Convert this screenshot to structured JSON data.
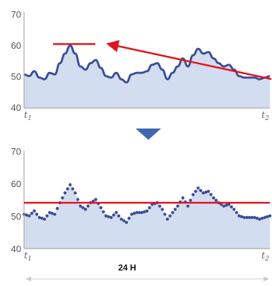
{
  "colors": {
    "line": "#3a4f9a",
    "fill": "#d3ddf0",
    "axis": "#a9a9a9",
    "red": "#e3141b",
    "arrow_down": "#3e68b4",
    "span": "#cccccc"
  },
  "time_labels": {
    "start": "t",
    "start_sub": "1",
    "end": "t",
    "end_sub": "2"
  },
  "duration_label": "24 H",
  "chart_data": [
    {
      "type": "area",
      "style": "solid-line",
      "yticks": [
        40,
        50,
        60,
        70
      ],
      "ylim": [
        40,
        70
      ],
      "x": [
        0,
        0.5,
        1,
        1.5,
        2,
        2.5,
        3,
        3.5,
        4,
        4.5,
        5,
        5.5,
        6,
        6.5,
        7,
        7.5,
        8,
        8.5,
        9,
        9.5,
        10,
        10.5,
        11,
        11.5,
        12,
        12.5,
        13,
        13.5,
        14,
        14.5,
        15,
        15.5,
        16,
        16.5,
        17,
        17.5,
        18,
        18.5,
        19,
        19.5,
        20,
        20.5,
        21,
        21.5,
        22,
        22.5,
        23,
        23.5,
        24
      ],
      "values": [
        50.5,
        50,
        51.5,
        49.5,
        49,
        51,
        50.5,
        54,
        57,
        59.5,
        57,
        53,
        52,
        54,
        55,
        52.5,
        50,
        49.5,
        51,
        49,
        48,
        50.5,
        51,
        51,
        51.5,
        53.5,
        54,
        52,
        49,
        51,
        53,
        55.5,
        53,
        56.5,
        58.5,
        57,
        57.5,
        55.5,
        54,
        53,
        53.5,
        52,
        50,
        49.5,
        49.5,
        49.5,
        49,
        49.5,
        50
      ],
      "reference_value": 60
    },
    {
      "type": "scatter",
      "style": "dotted-line",
      "yticks": [
        40,
        50,
        60,
        70
      ],
      "ylim": [
        40,
        70
      ],
      "x": [
        0,
        0.5,
        1,
        1.5,
        2,
        2.5,
        3,
        3.5,
        4,
        4.5,
        5,
        5.5,
        6,
        6.5,
        7,
        7.5,
        8,
        8.5,
        9,
        9.5,
        10,
        10.5,
        11,
        11.5,
        12,
        12.5,
        13,
        13.5,
        14,
        14.5,
        15,
        15.5,
        16,
        16.5,
        17,
        17.5,
        18,
        18.5,
        19,
        19.5,
        20,
        20.5,
        21,
        21.5,
        22,
        22.5,
        23,
        23.5,
        24
      ],
      "values": [
        50.5,
        50,
        51.5,
        49.5,
        49,
        51,
        50.5,
        54,
        57,
        59.5,
        57,
        53,
        52,
        54,
        55,
        52.5,
        50,
        49.5,
        51,
        49,
        48,
        50.5,
        51,
        51,
        51.5,
        53.5,
        54,
        52,
        49,
        51,
        53,
        55.5,
        53,
        56.5,
        58.5,
        57,
        57.5,
        55.5,
        54,
        53,
        53.5,
        52,
        50,
        49.5,
        49.5,
        49.5,
        49,
        49.5,
        50
      ],
      "reference_value": 54
    }
  ]
}
